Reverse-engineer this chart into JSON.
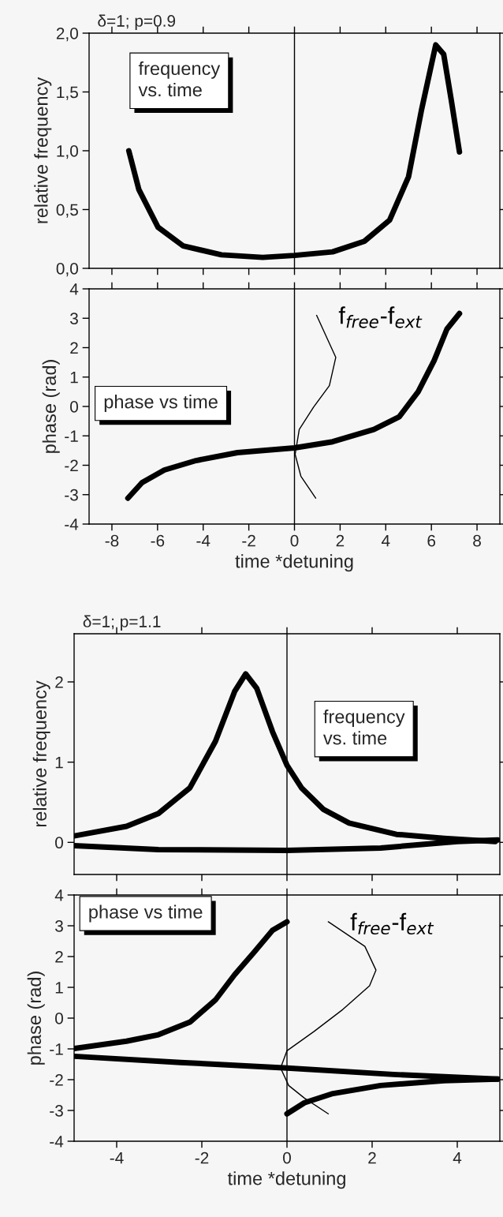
{
  "chart_data": [
    {
      "type": "line",
      "title": "δ=1; p=0.9",
      "ylabel": "relative frequency",
      "xlim": [
        -9,
        9
      ],
      "ylim": [
        0,
        2
      ],
      "xticks": [
        -8,
        -6,
        -4,
        -2,
        0,
        2,
        4,
        6,
        8
      ],
      "yticks": [
        {
          "value": 0,
          "label": "0,0"
        },
        {
          "value": 0.5,
          "label": "0,5"
        },
        {
          "value": 1,
          "label": "1,0"
        },
        {
          "value": 1.5,
          "label": "1,5"
        },
        {
          "value": 2,
          "label": "2,0"
        }
      ],
      "tick_labels": "y",
      "annotations": [
        "frequency\nvs. time"
      ],
      "ref_lines": [
        {
          "axis": "x",
          "value": 0,
          "color": "#000000"
        }
      ],
      "series": [
        {
          "color": "#000000",
          "x": [
            -7.26,
            -6.82,
            -5.98,
            -4.87,
            -3.2,
            -1.39,
            0,
            1.67,
            3.06,
            4.17,
            5.0,
            5.56,
            6.19,
            6.54,
            6.88,
            7.23
          ],
          "values": [
            1.0,
            0.67,
            0.35,
            0.19,
            0.115,
            0.093,
            0.11,
            0.14,
            0.23,
            0.41,
            0.78,
            1.34,
            1.9,
            1.82,
            1.42,
            0.99
          ]
        }
      ]
    },
    {
      "type": "line",
      "xlabel": "time *detuning",
      "ylabel": "phase (rad)",
      "xlim": [
        -9,
        9
      ],
      "ylim": [
        -4,
        4
      ],
      "xticks": [
        -8,
        -6,
        -4,
        -2,
        0,
        2,
        4,
        6,
        8
      ],
      "yticks": [
        -4,
        -3,
        -2,
        -1,
        0,
        1,
        2,
        3,
        4
      ],
      "annotations": [
        "phase vs time"
      ],
      "ref_lines": [
        {
          "axis": "x",
          "value": 0,
          "color": "#000000"
        }
      ],
      "series": [
        {
          "color": "#000000",
          "x": [
            -7.3,
            -6.68,
            -5.7,
            -4.31,
            -2.5,
            0,
            1.67,
            3.48,
            4.59,
            5.42,
            6.12,
            6.68,
            7.23
          ],
          "values": [
            -3.12,
            -2.59,
            -2.16,
            -1.84,
            -1.57,
            -1.41,
            -1.2,
            -0.78,
            -0.35,
            0.5,
            1.56,
            2.63,
            3.16
          ]
        },
        {
          "name": "f$_{free}$-f$_{ext}$",
          "color": "#000000",
          "x": [
            0.97,
            1.81,
            1.53,
            0.83,
            0.21,
            0.03,
            0.28,
            0.93
          ],
          "values": [
            3.1,
            1.67,
            0.71,
            -0.03,
            -0.78,
            -1.63,
            -2.37,
            -3.12
          ]
        }
      ]
    },
    {
      "type": "line",
      "title": "δ=1; p=1.1",
      "ylabel": "relative frequency",
      "xlim": [
        -5,
        5
      ],
      "ylim": [
        -0.4,
        2.6
      ],
      "xticks": [
        -4,
        -2,
        0,
        2,
        4
      ],
      "yticks": [
        0,
        1,
        2
      ],
      "tick_labels": "y",
      "annotations": [
        "frequency\nvs. time"
      ],
      "ref_lines": [
        {
          "axis": "x",
          "value": 0,
          "color": "#000000"
        }
      ],
      "series": [
        {
          "color": "#000000",
          "x": [
            -5,
            -3.77,
            -3.02,
            -2.28,
            -1.68,
            -1.23,
            -0.97,
            -0.71,
            -0.34,
            0,
            0.34,
            0.86,
            1.46,
            2.57,
            3.69,
            4.89
          ],
          "values": [
            0.08,
            0.2,
            0.36,
            0.68,
            1.26,
            1.88,
            2.1,
            1.92,
            1.38,
            0.96,
            0.68,
            0.41,
            0.24,
            0.1,
            0.05,
            0.01
          ]
        },
        {
          "color": "#000000",
          "x": [
            -5,
            -3.02,
            0,
            2.2,
            4.0,
            4.95
          ],
          "values": [
            -0.04,
            -0.09,
            -0.1,
            -0.07,
            0.01,
            0.03
          ]
        }
      ]
    },
    {
      "type": "line",
      "xlabel": "time *detuning",
      "ylabel": "phase (rad)",
      "xlim": [
        -5,
        5
      ],
      "ylim": [
        -4,
        4
      ],
      "xticks": [
        -4,
        -2,
        0,
        2,
        4
      ],
      "yticks": [
        -4,
        -3,
        -2,
        -1,
        0,
        1,
        2,
        3,
        4
      ],
      "annotations": [
        "phase vs time"
      ],
      "ref_lines": [
        {
          "axis": "x",
          "value": 0,
          "color": "#000000"
        }
      ],
      "series": [
        {
          "color": "#000000",
          "x": [
            -5,
            -3.77,
            -3.02,
            -2.28,
            -1.68,
            -1.23,
            -0.78,
            -0.34,
            0
          ],
          "values": [
            -0.99,
            -0.75,
            -0.54,
            -0.13,
            0.59,
            1.41,
            2.13,
            2.85,
            3.13
          ]
        },
        {
          "color": "#000000",
          "x": [
            0,
            0.41,
            1.08,
            2.2,
            3.69,
            4.95
          ],
          "values": [
            -3.11,
            -2.75,
            -2.45,
            -2.19,
            -2.03,
            -1.98
          ]
        },
        {
          "color": "#000000",
          "x": [
            -5,
            -2.5,
            0,
            2.5,
            4.95
          ],
          "values": [
            -1.24,
            -1.44,
            -1.62,
            -1.83,
            -1.98
          ]
        },
        {
          "name": "f$_{free}$-f$_{ext}$",
          "color": "#000000",
          "x": [
            0.97,
            1.83,
            2.09,
            1.94,
            1.31,
            0.63,
            0,
            -0.15,
            0.04,
            0.41,
            0.97
          ],
          "values": [
            3.13,
            2.33,
            1.56,
            1.05,
            0.28,
            -0.44,
            -1.06,
            -1.62,
            -2.19,
            -2.6,
            -3.11
          ]
        }
      ]
    }
  ]
}
